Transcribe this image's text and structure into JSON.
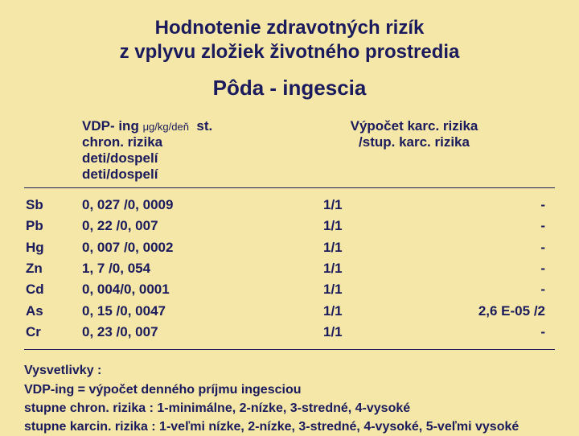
{
  "title_line1": "Hodnotenie zdravotných rizík",
  "title_line2": "z vplyvu zložiek životného prostredia",
  "subtitle": "Pôda - ingescia",
  "header": {
    "col1_a": "VDP- ing ",
    "col1_unit": "μg/kg/deň",
    "col1_b": "deti/dospelí",
    "col2_a": "st. chron. rizika",
    "col2_b": "deti/dospelí",
    "col3_a": "Výpočet  karc. rizika",
    "col3_b": "/stup. karc. rizika"
  },
  "rows": [
    {
      "el": "Sb",
      "chron": "0, 027 /0, 0009",
      "karc": "1/1",
      "stup": "-"
    },
    {
      "el": "Pb",
      "chron": "0, 22   /0, 007",
      "karc": "1/1",
      "stup": "-"
    },
    {
      "el": "Hg",
      "chron": "0, 007 /0, 0002",
      "karc": "1/1",
      "stup": "-"
    },
    {
      "el": "Zn",
      "chron": "1, 7    /0, 054",
      "karc": "1/1",
      "stup": "-"
    },
    {
      "el": "Cd",
      "chron": "0, 004/0, 0001",
      "karc": "1/1",
      "stup": "-"
    },
    {
      "el": "As",
      "chron": "0, 15  /0, 0047",
      "karc": "1/1",
      "stup": "2,6 E-05 /2"
    },
    {
      "el": "Cr",
      "chron": "0, 23  /0, 007",
      "karc": "1/1",
      "stup": "-"
    }
  ],
  "notes": {
    "l1": "Vysvetlivky :",
    "l2": "VDP-ing = výpočet denného príjmu ingesciou",
    "l3": "stupne chron. rizika  : 1-minimálne, 2-nízke, 3-stredné, 4-vysoké",
    "l4": "stupne karcin. rizika  : 1-veľmi nízke, 2-nízke, 3-stredné, 4-vysoké, 5-veľmi vysoké"
  },
  "colors": {
    "background": "#f4e7a8",
    "text": "#1a1a5c"
  }
}
